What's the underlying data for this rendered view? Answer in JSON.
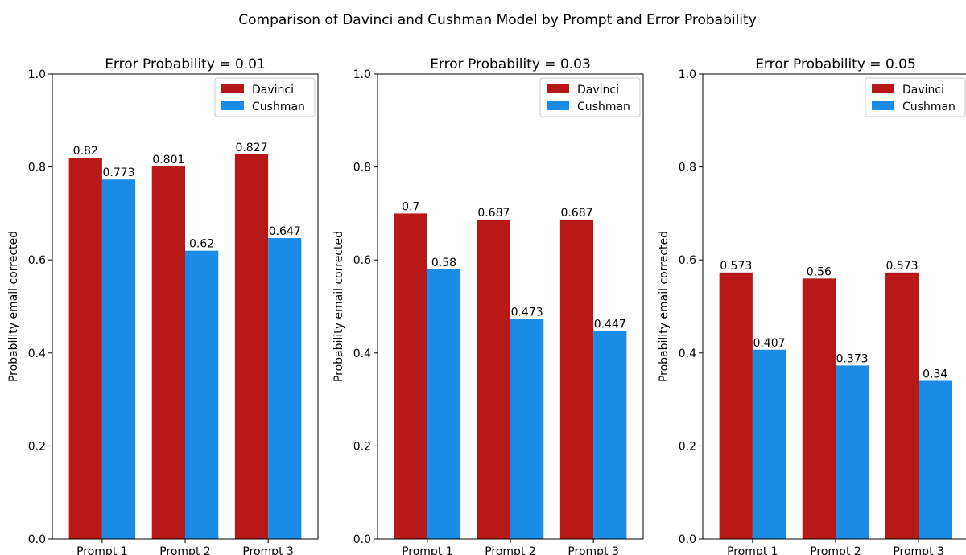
{
  "title": "Comparison of Davinci and Cushman Model by Prompt and Error Probability",
  "colors": {
    "davinci": "#b71818",
    "cushman": "#1b8ce6"
  },
  "chart_data": [
    {
      "type": "bar",
      "title": "Error Probability = 0.01",
      "ylabel": "Probability email corrected",
      "xlabel": "",
      "ylim": [
        0,
        1.0
      ],
      "yticks": [
        "0.0",
        "0.2",
        "0.4",
        "0.6",
        "0.8",
        "1.0"
      ],
      "categories": [
        "Prompt 1",
        "Prompt 2",
        "Prompt 3"
      ],
      "legend_position": "top-right",
      "series": [
        {
          "name": "Davinci",
          "values": [
            0.82,
            0.801,
            0.827
          ],
          "labels": [
            "0.82",
            "0.801",
            "0.827"
          ]
        },
        {
          "name": "Cushman",
          "values": [
            0.773,
            0.62,
            0.647
          ],
          "labels": [
            "0.773",
            "0.62",
            "0.647"
          ]
        }
      ]
    },
    {
      "type": "bar",
      "title": "Error Probability = 0.03",
      "ylabel": "Probability email corrected",
      "xlabel": "",
      "ylim": [
        0,
        1.0
      ],
      "yticks": [
        "0.0",
        "0.2",
        "0.4",
        "0.6",
        "0.8",
        "1.0"
      ],
      "categories": [
        "Prompt 1",
        "Prompt 2",
        "Prompt 3"
      ],
      "legend_position": "top-right",
      "series": [
        {
          "name": "Davinci",
          "values": [
            0.7,
            0.687,
            0.687
          ],
          "labels": [
            "0.7",
            "0.687",
            "0.687"
          ]
        },
        {
          "name": "Cushman",
          "values": [
            0.58,
            0.473,
            0.447
          ],
          "labels": [
            "0.58",
            "0.473",
            "0.447"
          ]
        }
      ]
    },
    {
      "type": "bar",
      "title": "Error Probability = 0.05",
      "ylabel": "Probability email corrected",
      "xlabel": "",
      "ylim": [
        0,
        1.0
      ],
      "yticks": [
        "0.0",
        "0.2",
        "0.4",
        "0.6",
        "0.8",
        "1.0"
      ],
      "categories": [
        "Prompt 1",
        "Prompt 2",
        "Prompt 3"
      ],
      "legend_position": "top-right",
      "series": [
        {
          "name": "Davinci",
          "values": [
            0.573,
            0.56,
            0.573
          ],
          "labels": [
            "0.573",
            "0.56",
            "0.573"
          ]
        },
        {
          "name": "Cushman",
          "values": [
            0.407,
            0.373,
            0.34
          ],
          "labels": [
            "0.407",
            "0.373",
            "0.34"
          ]
        }
      ]
    }
  ]
}
